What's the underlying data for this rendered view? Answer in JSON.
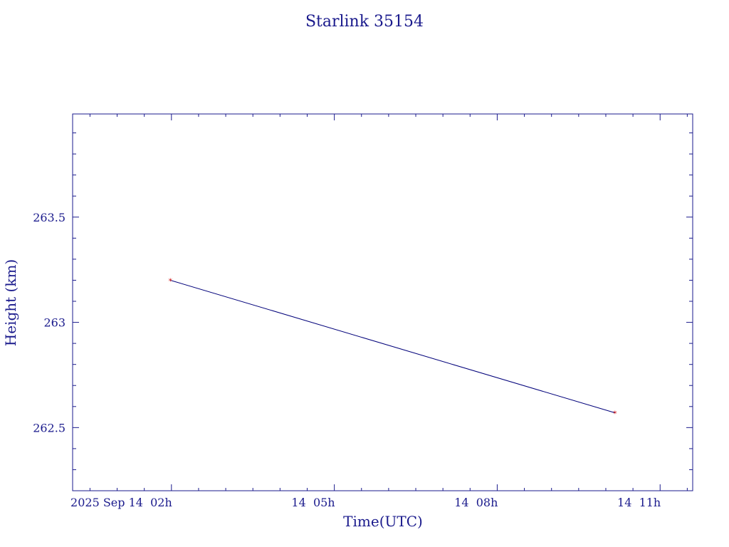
{
  "chart_data": {
    "type": "line",
    "title": "Starlink 35154",
    "xlabel": "Time(UTC)",
    "ylabel": "Height (km)",
    "x_tick_labels": [
      "2025 Sep 14  02h",
      "14  05h",
      "14  08h",
      "14  11h"
    ],
    "x_tick_values_hours": [
      2,
      5,
      8,
      11
    ],
    "xlim_hours": [
      0.18,
      11.6
    ],
    "y_tick_labels": [
      "263.5",
      "263",
      "262.5"
    ],
    "y_tick_values": [
      263.5,
      263.0,
      262.5
    ],
    "ylim": [
      262.2,
      263.99
    ],
    "series": [
      {
        "x_hours": [
          1.98,
          10.17
        ],
        "values": [
          263.2,
          262.57
        ]
      }
    ],
    "grid": false,
    "colors": {
      "axis": "#1a1a8c",
      "line": "#00007a",
      "marker": "#d01010"
    }
  }
}
